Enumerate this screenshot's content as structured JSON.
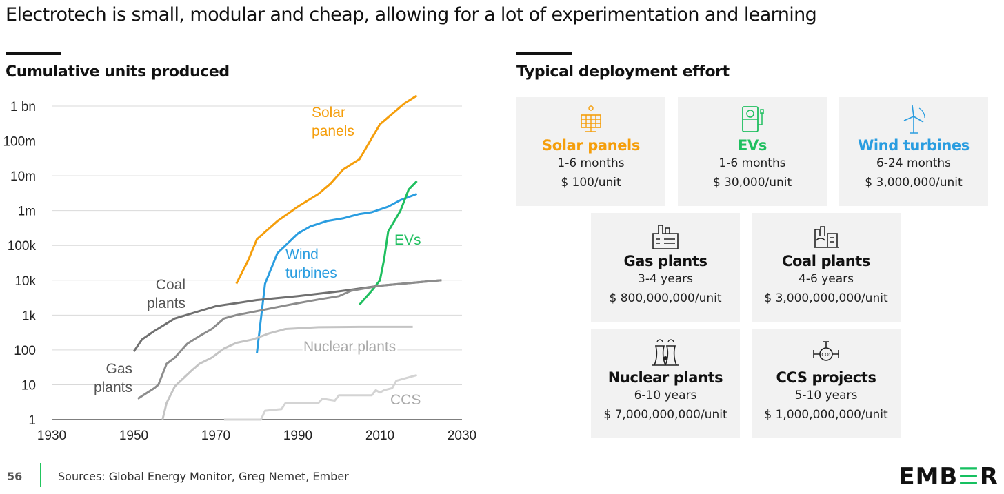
{
  "title": "Electrotech is small, modular and cheap, allowing for a lot of experimentation and learning",
  "left_heading": "Cumulative units produced",
  "right_heading": "Typical deployment effort",
  "chart_data": {
    "type": "line",
    "title": "Cumulative units produced",
    "yscale": "log",
    "xlim": [
      1930,
      2030
    ],
    "ylim": [
      1,
      1000000000
    ],
    "xticks": [
      1930,
      1950,
      1970,
      1990,
      2010,
      2030
    ],
    "yticks": [
      {
        "v": 1,
        "l": "1"
      },
      {
        "v": 10,
        "l": "10"
      },
      {
        "v": 100,
        "l": "100"
      },
      {
        "v": 1000,
        "l": "1k"
      },
      {
        "v": 10000,
        "l": "10k"
      },
      {
        "v": 100000,
        "l": "100k"
      },
      {
        "v": 1000000,
        "l": "1m"
      },
      {
        "v": 10000000,
        "l": "10m"
      },
      {
        "v": 100000000,
        "l": "100m"
      },
      {
        "v": 1000000000,
        "l": "1 bn"
      }
    ],
    "grid": true,
    "series": [
      {
        "name": "Solar panels",
        "label": [
          "Solar",
          "panels"
        ],
        "color": "#f59e0b",
        "points": [
          [
            1975,
            8000
          ],
          [
            1978,
            40000
          ],
          [
            1980,
            150000
          ],
          [
            1985,
            500000
          ],
          [
            1990,
            1300000
          ],
          [
            1995,
            3000000
          ],
          [
            1998,
            6000000
          ],
          [
            2001,
            15000000
          ],
          [
            2005,
            30000000
          ],
          [
            2008,
            120000000
          ],
          [
            2010,
            300000000
          ],
          [
            2013,
            600000000
          ],
          [
            2016,
            1200000000
          ],
          [
            2019,
            2000000000
          ]
        ]
      },
      {
        "name": "Wind turbines",
        "label": [
          "Wind",
          "turbines"
        ],
        "color": "#2a9de0",
        "points": [
          [
            1980,
            80
          ],
          [
            1982,
            8000
          ],
          [
            1985,
            60000
          ],
          [
            1990,
            220000
          ],
          [
            1993,
            350000
          ],
          [
            1997,
            500000
          ],
          [
            2001,
            600000
          ],
          [
            2005,
            800000
          ],
          [
            2008,
            900000
          ],
          [
            2012,
            1300000
          ],
          [
            2015,
            2000000
          ],
          [
            2019,
            3000000
          ]
        ]
      },
      {
        "name": "EVs",
        "label": [
          "EVs"
        ],
        "color": "#1fbf5f",
        "points": [
          [
            2005,
            2000
          ],
          [
            2008,
            5000
          ],
          [
            2010,
            10000
          ],
          [
            2011,
            40000
          ],
          [
            2012,
            250000
          ],
          [
            2015,
            1000000
          ],
          [
            2017,
            4000000
          ],
          [
            2019,
            7000000
          ]
        ]
      },
      {
        "name": "Coal plants",
        "label": [
          "Coal",
          "plants"
        ],
        "color": "#707070",
        "points": [
          [
            1950,
            90
          ],
          [
            1952,
            200
          ],
          [
            1955,
            350
          ],
          [
            1960,
            800
          ],
          [
            1965,
            1200
          ],
          [
            1970,
            1800
          ],
          [
            1975,
            2200
          ],
          [
            1980,
            2700
          ],
          [
            1990,
            3500
          ],
          [
            2000,
            4800
          ],
          [
            2010,
            7000
          ],
          [
            2025,
            10000
          ]
        ]
      },
      {
        "name": "Gas plants",
        "label": [
          "Gas",
          "plants"
        ],
        "color": "#8c8c8c",
        "points": [
          [
            1951,
            4
          ],
          [
            1955,
            8
          ],
          [
            1956,
            10
          ],
          [
            1958,
            40
          ],
          [
            1960,
            60
          ],
          [
            1963,
            150
          ],
          [
            1966,
            250
          ],
          [
            1969,
            400
          ],
          [
            1972,
            800
          ],
          [
            1975,
            1000
          ],
          [
            1980,
            1300
          ],
          [
            1985,
            1700
          ],
          [
            1990,
            2200
          ],
          [
            1995,
            2800
          ],
          [
            2000,
            3500
          ],
          [
            2003,
            5000
          ],
          [
            2010,
            7000
          ],
          [
            2025,
            10000
          ]
        ]
      },
      {
        "name": "Nuclear plants",
        "label": [
          "Nuclear plants"
        ],
        "color": "#c4c4c4",
        "points": [
          [
            1957,
            1
          ],
          [
            1958,
            3
          ],
          [
            1960,
            9
          ],
          [
            1962,
            15
          ],
          [
            1964,
            25
          ],
          [
            1966,
            40
          ],
          [
            1969,
            60
          ],
          [
            1972,
            110
          ],
          [
            1975,
            160
          ],
          [
            1979,
            200
          ],
          [
            1983,
            300
          ],
          [
            1987,
            400
          ],
          [
            1995,
            450
          ],
          [
            2005,
            460
          ],
          [
            2018,
            460
          ]
        ]
      },
      {
        "name": "CCS",
        "label": [
          "CCS"
        ],
        "color": "#d4d4d4",
        "points": [
          [
            1972,
            1
          ],
          [
            1981,
            1
          ],
          [
            1982,
            1.8
          ],
          [
            1986,
            2
          ],
          [
            1987,
            3
          ],
          [
            1992,
            3
          ],
          [
            1995,
            3
          ],
          [
            1996,
            4
          ],
          [
            1999,
            3.5
          ],
          [
            2000,
            5
          ],
          [
            2008,
            5
          ],
          [
            2009,
            7
          ],
          [
            2010,
            6
          ],
          [
            2011,
            7
          ],
          [
            2013,
            8
          ],
          [
            2014,
            13
          ],
          [
            2019,
            19
          ]
        ]
      }
    ]
  },
  "cards": [
    {
      "name": "Solar panels",
      "time": "1-6 months",
      "cost": "$ 100/unit",
      "color": "#f59e0b",
      "icon": "solar-panel-icon"
    },
    {
      "name": "EVs",
      "time": "1-6 months",
      "cost": "$ 30,000/unit",
      "color": "#1fbf5f",
      "icon": "ev-charger-icon"
    },
    {
      "name": "Wind turbines",
      "time": "6-24 months",
      "cost": "$ 3,000,000/unit",
      "color": "#2a9de0",
      "icon": "wind-turbine-icon"
    },
    {
      "name": "Gas plants",
      "time": "3-4 years",
      "cost": "$ 800,000,000/unit",
      "color": "#111111",
      "icon": "gas-plant-icon"
    },
    {
      "name": "Coal plants",
      "time": "4-6 years",
      "cost": "$ 3,000,000,000/unit",
      "color": "#111111",
      "icon": "coal-plant-icon"
    },
    {
      "name": "Nuclear plants",
      "time": "6-10 years",
      "cost": "$ 7,000,000,000/unit",
      "color": "#111111",
      "icon": "nuclear-plant-icon"
    },
    {
      "name": "CCS projects",
      "time": "5-10 years",
      "cost": "$ 1,000,000,000/unit",
      "color": "#111111",
      "icon": "ccs-icon"
    }
  ],
  "footer": {
    "page": "56",
    "sources": "Sources: Global Energy Monitor, Greg Nemet, Ember",
    "logo": "EMBER"
  }
}
